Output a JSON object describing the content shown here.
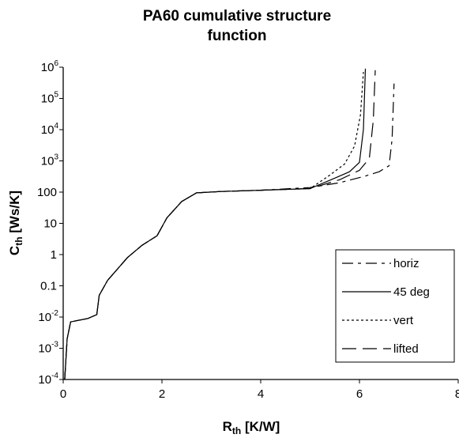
{
  "chart_data": {
    "type": "line",
    "title": [
      "PA60 cumulative structure",
      "function"
    ],
    "xlabel": {
      "main": "R",
      "sub": "th",
      "rest": " [K/W]"
    },
    "ylabel": {
      "main": "C",
      "sub": "th",
      "rest": " [Ws/K]"
    },
    "xlim": [
      0,
      8
    ],
    "ylim": [
      0.0001,
      1000000
    ],
    "yscale": "log",
    "x_ticks": [
      0,
      2,
      4,
      6,
      8
    ],
    "x_tick_labels": [
      "0",
      "2",
      "4",
      "6",
      "8"
    ],
    "y_ticks": [
      {
        "value": 1000000,
        "label": "10",
        "exp": "6"
      },
      {
        "value": 100000,
        "label": "10",
        "exp": "5"
      },
      {
        "value": 10000,
        "label": "10",
        "exp": "4"
      },
      {
        "value": 1000,
        "label": "10",
        "exp": "3"
      },
      {
        "value": 100,
        "label": "100",
        "exp": ""
      },
      {
        "value": 10,
        "label": "10",
        "exp": ""
      },
      {
        "value": 1,
        "label": "1",
        "exp": ""
      },
      {
        "value": 0.1,
        "label": "0.1",
        "exp": ""
      },
      {
        "value": 0.01,
        "label": "10",
        "exp": "-2"
      },
      {
        "value": 0.001,
        "label": "10",
        "exp": "-3"
      },
      {
        "value": 0.0001,
        "label": "10",
        "exp": "-4"
      }
    ],
    "grid": false,
    "legend_position": "bottom-right",
    "series": [
      {
        "name": "horiz",
        "dash": "14,6,4,6",
        "points": [
          [
            0.03,
            0.0001
          ],
          [
            0.08,
            0.002
          ],
          [
            0.15,
            0.007
          ],
          [
            0.5,
            0.009
          ],
          [
            0.68,
            0.012
          ],
          [
            0.73,
            0.05
          ],
          [
            0.9,
            0.15
          ],
          [
            1.3,
            0.8
          ],
          [
            1.6,
            2
          ],
          [
            1.9,
            4
          ],
          [
            2.1,
            15
          ],
          [
            2.4,
            50
          ],
          [
            2.7,
            95
          ],
          [
            3.2,
            105
          ],
          [
            4.0,
            115
          ],
          [
            5.0,
            140
          ],
          [
            5.6,
            200
          ],
          [
            6.1,
            320
          ],
          [
            6.4,
            450
          ],
          [
            6.6,
            700
          ],
          [
            6.66,
            5000
          ],
          [
            6.7,
            300000
          ]
        ]
      },
      {
        "name": "45 deg",
        "dash": "",
        "points": [
          [
            0.03,
            0.0001
          ],
          [
            0.08,
            0.002
          ],
          [
            0.15,
            0.007
          ],
          [
            0.5,
            0.009
          ],
          [
            0.68,
            0.012
          ],
          [
            0.73,
            0.05
          ],
          [
            0.9,
            0.15
          ],
          [
            1.3,
            0.8
          ],
          [
            1.6,
            2
          ],
          [
            1.9,
            4
          ],
          [
            2.1,
            15
          ],
          [
            2.4,
            50
          ],
          [
            2.7,
            95
          ],
          [
            3.2,
            105
          ],
          [
            4.0,
            115
          ],
          [
            5.0,
            130
          ],
          [
            5.5,
            280
          ],
          [
            5.8,
            450
          ],
          [
            6.0,
            900
          ],
          [
            6.08,
            10000
          ],
          [
            6.12,
            900000
          ]
        ]
      },
      {
        "name": "vert",
        "dash": "3,3",
        "points": [
          [
            0.03,
            0.0001
          ],
          [
            0.08,
            0.002
          ],
          [
            0.15,
            0.007
          ],
          [
            0.5,
            0.009
          ],
          [
            0.68,
            0.012
          ],
          [
            0.73,
            0.05
          ],
          [
            0.9,
            0.15
          ],
          [
            1.3,
            0.8
          ],
          [
            1.6,
            2
          ],
          [
            1.9,
            4
          ],
          [
            2.1,
            15
          ],
          [
            2.4,
            50
          ],
          [
            2.7,
            95
          ],
          [
            3.2,
            105
          ],
          [
            4.0,
            115
          ],
          [
            5.0,
            130
          ],
          [
            5.4,
            350
          ],
          [
            5.7,
            800
          ],
          [
            5.9,
            3000
          ],
          [
            6.02,
            30000
          ],
          [
            6.08,
            700000
          ]
        ]
      },
      {
        "name": "lifted",
        "dash": "18,8",
        "points": [
          [
            0.03,
            0.0001
          ],
          [
            0.08,
            0.002
          ],
          [
            0.15,
            0.007
          ],
          [
            0.5,
            0.009
          ],
          [
            0.68,
            0.012
          ],
          [
            0.73,
            0.05
          ],
          [
            0.9,
            0.15
          ],
          [
            1.3,
            0.8
          ],
          [
            1.6,
            2
          ],
          [
            1.9,
            4
          ],
          [
            2.1,
            15
          ],
          [
            2.4,
            50
          ],
          [
            2.7,
            95
          ],
          [
            3.2,
            105
          ],
          [
            4.0,
            115
          ],
          [
            5.0,
            130
          ],
          [
            5.6,
            250
          ],
          [
            6.0,
            500
          ],
          [
            6.2,
            1200
          ],
          [
            6.28,
            20000
          ],
          [
            6.32,
            800000
          ]
        ]
      }
    ]
  }
}
